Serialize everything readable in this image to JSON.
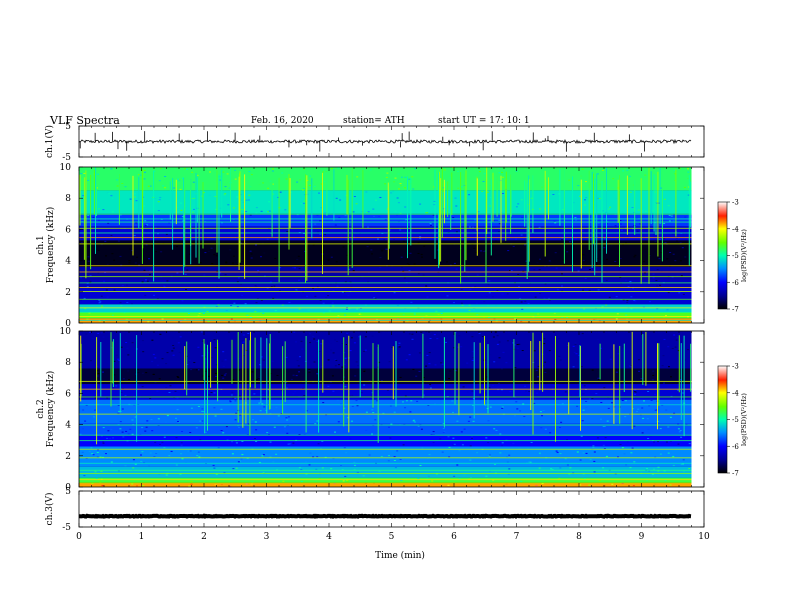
{
  "header": {
    "title": "VLF  Spectra",
    "date": "Feb. 16, 2020",
    "station": "station= ATH",
    "start": "start  UT  =   17: 10: 1"
  },
  "chart_data": {
    "type": "heatmap",
    "title": "VLF  Spectra",
    "xlabel": "Time  (min)",
    "xlim": [
      0,
      10
    ],
    "x_ticks": [
      "0",
      "1",
      "2",
      "3",
      "4",
      "5",
      "6",
      "7",
      "8",
      "9",
      "10"
    ],
    "data_end_min": 9.8,
    "panels": [
      {
        "kind": "trace",
        "ylabel": "ch.1(V)",
        "ylim": [
          -5,
          5
        ],
        "y_ticks": [
          "5",
          "-5"
        ],
        "mean": 0,
        "noise": 0.5,
        "spikes": 30,
        "color": "#000000"
      },
      {
        "kind": "spectrogram",
        "ylabel": "ch.1\nFrequency  (kHz)",
        "ylim": [
          0,
          10
        ],
        "y_ticks": [
          "0",
          "2",
          "4",
          "6",
          "8",
          "10"
        ],
        "colorbar": {
          "label": "log(PSD)(V²/Hz)",
          "range": [
            -7,
            -3
          ],
          "ticks": [
            "-3",
            "-4",
            "-5",
            "-6",
            "-7"
          ]
        },
        "bands_khz_level": [
          [
            0.0,
            0.3,
            -3.8
          ],
          [
            0.3,
            0.7,
            -4.6
          ],
          [
            0.7,
            1.2,
            -5.2
          ],
          [
            1.2,
            2.2,
            -6.2
          ],
          [
            2.2,
            2.8,
            -6.3
          ],
          [
            2.8,
            3.6,
            -6.4
          ],
          [
            3.6,
            5.3,
            -6.9
          ],
          [
            5.3,
            6.2,
            -6.2
          ],
          [
            6.2,
            7.0,
            -5.8
          ],
          [
            7.0,
            8.5,
            -5.1
          ],
          [
            8.5,
            10.0,
            -4.8
          ]
        ],
        "lines_khz": [
          0.2,
          0.45,
          0.7,
          1.0,
          1.55,
          2.05,
          2.3,
          2.6,
          3.0,
          3.3,
          3.7,
          5.1,
          5.5,
          5.8,
          6.1,
          6.5,
          6.7,
          7.0
        ],
        "spike_count": 110
      },
      {
        "kind": "spectrogram",
        "ylabel": "ch.2\nFrequency  (kHz)",
        "ylim": [
          0,
          10
        ],
        "y_ticks": [
          "0",
          "2",
          "4",
          "6",
          "8",
          "10"
        ],
        "colorbar": {
          "label": "log(PSD)(V²/Hz)",
          "range": [
            -7,
            -3
          ],
          "ticks": [
            "-3",
            "-4",
            "-5",
            "-6",
            "-7"
          ]
        },
        "bands_khz_level": [
          [
            0.0,
            0.3,
            -3.8
          ],
          [
            0.3,
            0.6,
            -4.7
          ],
          [
            0.6,
            1.3,
            -5.3
          ],
          [
            1.3,
            2.6,
            -5.5
          ],
          [
            2.6,
            3.3,
            -6.0
          ],
          [
            3.3,
            4.1,
            -5.7
          ],
          [
            4.1,
            5.6,
            -5.6
          ],
          [
            5.6,
            6.6,
            -6.2
          ],
          [
            6.6,
            7.6,
            -6.8
          ],
          [
            7.6,
            10.0,
            -6.4
          ]
        ],
        "lines_khz": [
          0.3,
          0.5,
          0.9,
          1.1,
          1.55,
          1.9,
          2.45,
          3.0,
          3.35,
          4.0,
          4.7,
          5.3,
          5.8,
          6.3,
          6.8
        ],
        "spike_count": 70
      },
      {
        "kind": "trace",
        "ylabel": "ch.3(V)",
        "ylim": [
          -5,
          5
        ],
        "y_ticks": [
          "5",
          "-5"
        ],
        "mean": -2,
        "noise": 0.1,
        "spikes": 0,
        "color": "#000000"
      }
    ]
  }
}
